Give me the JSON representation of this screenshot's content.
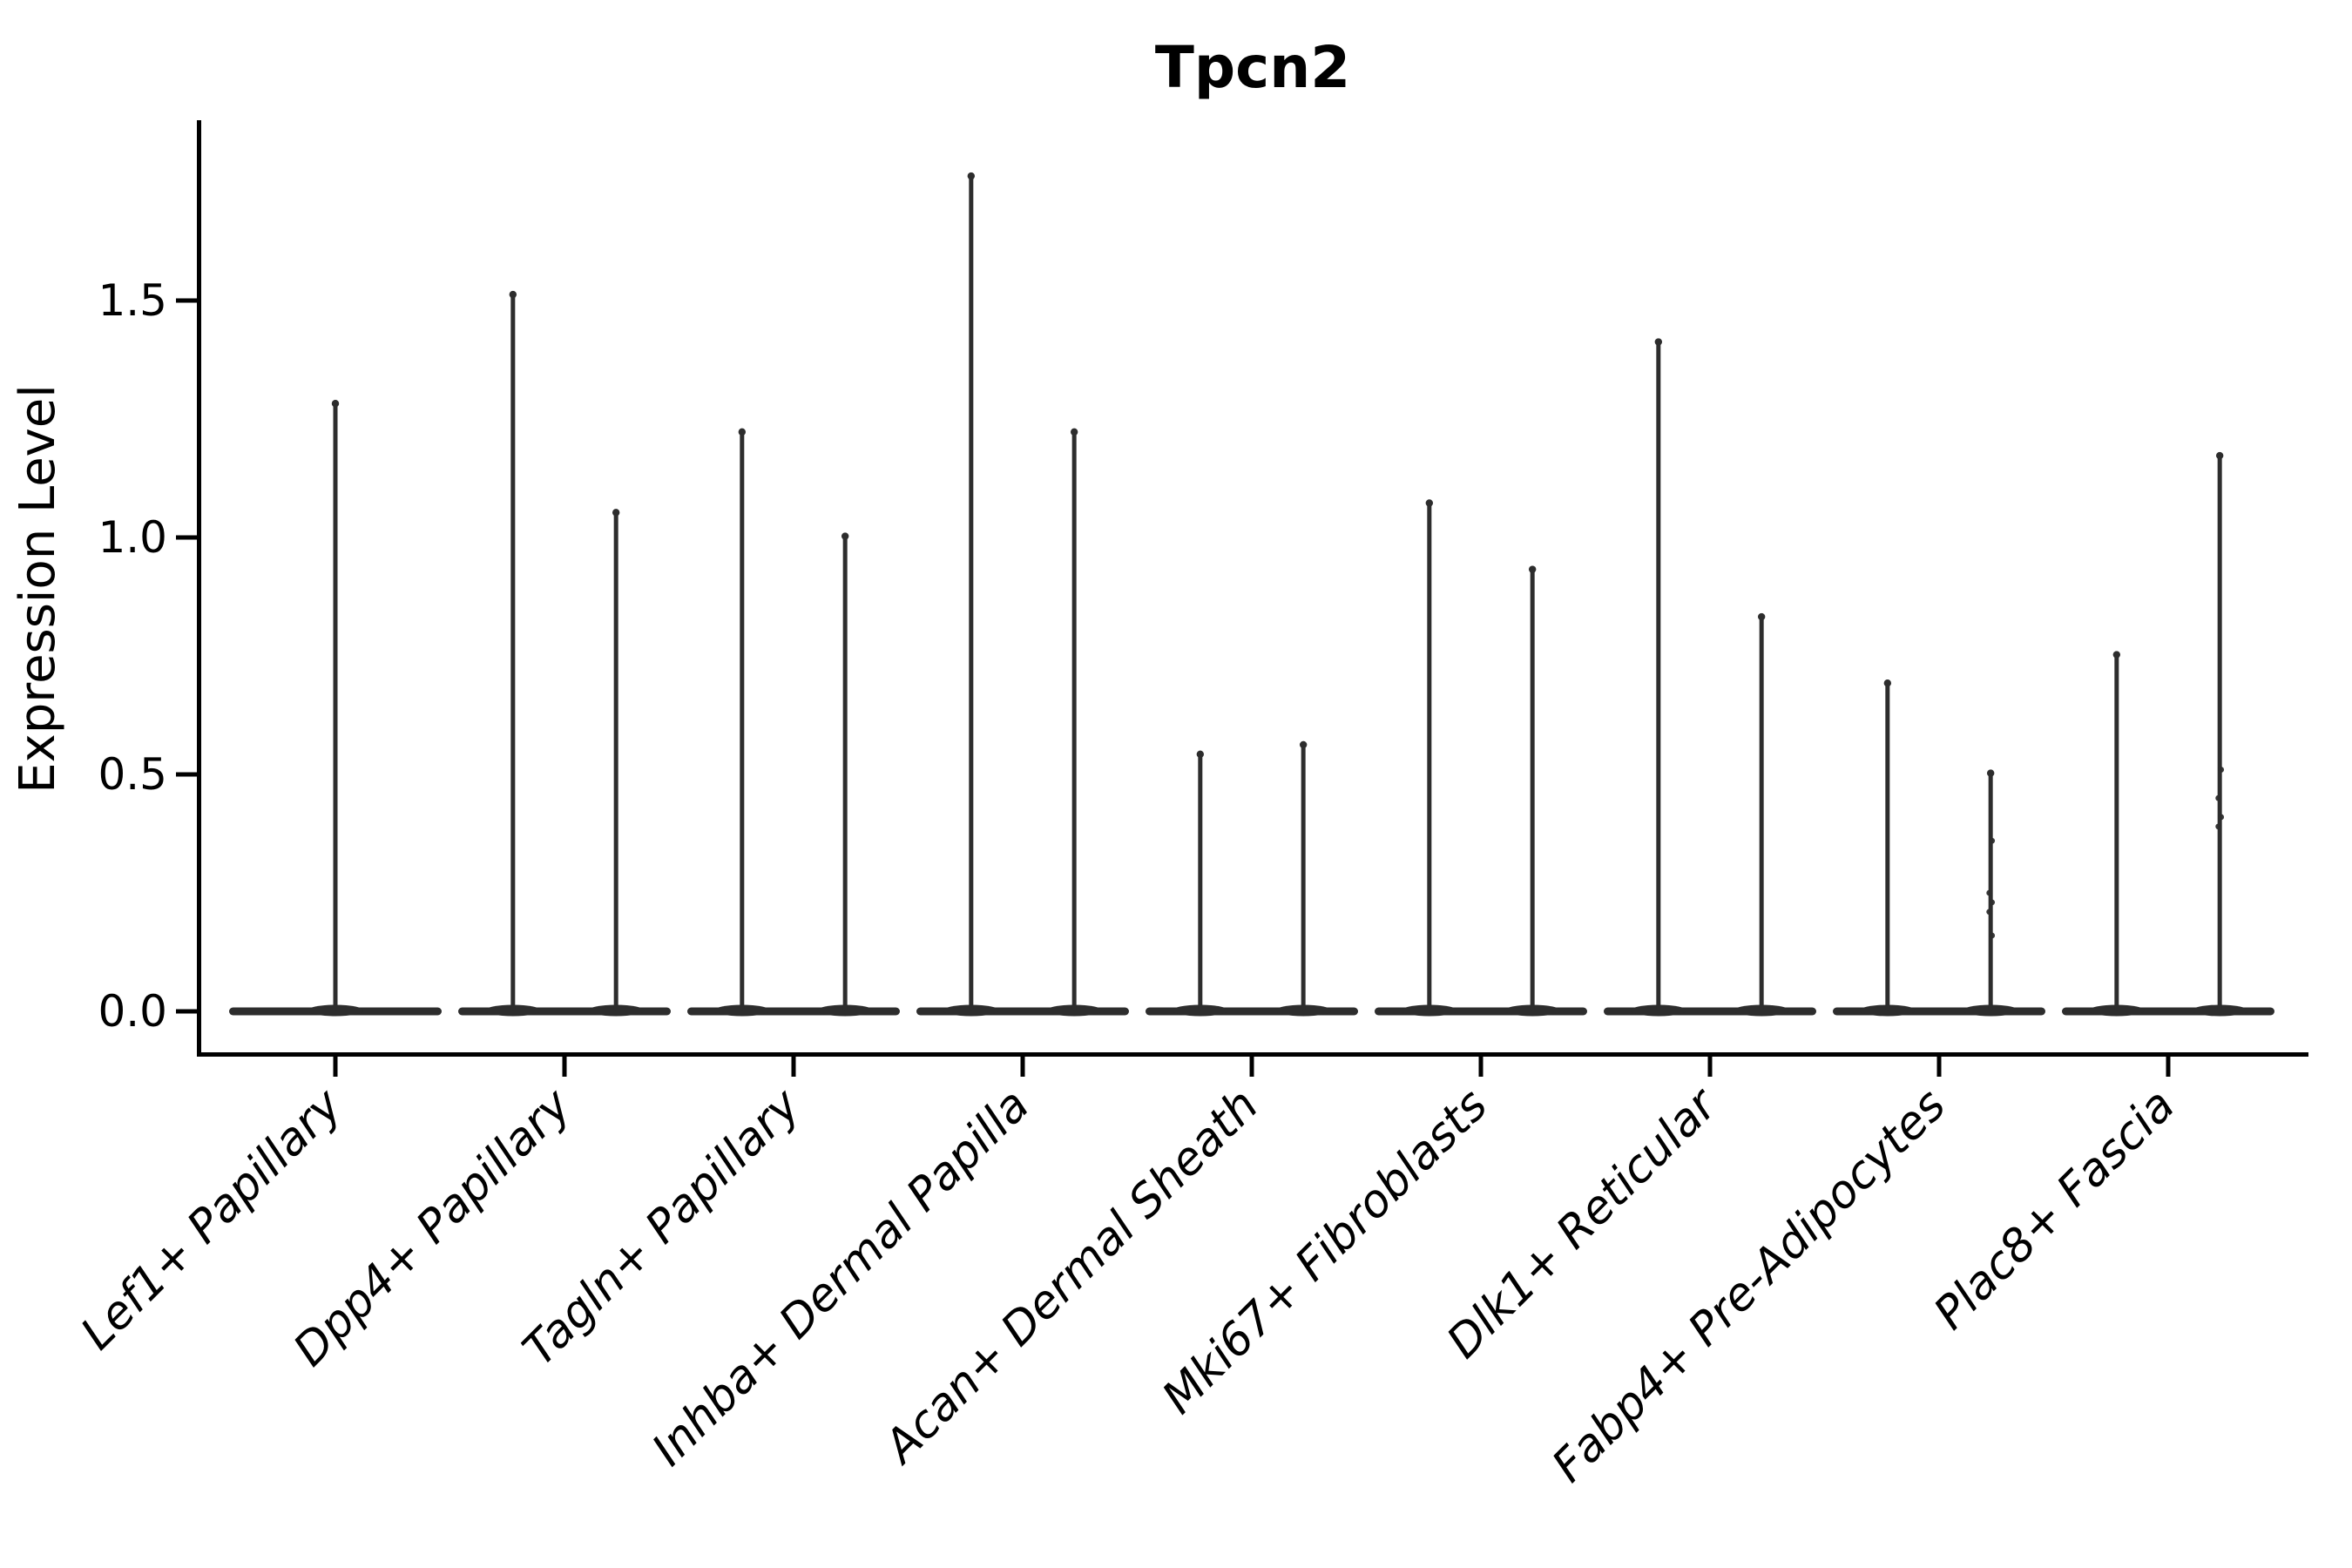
{
  "figure": {
    "title": "Tpcn2",
    "y_axis_label": "Expression Level"
  },
  "chart_data": {
    "type": "violin",
    "title": "Tpcn2",
    "xlabel": "",
    "ylabel": "Expression Level",
    "ylim": [
      -0.09,
      1.88
    ],
    "yticks": [
      0.0,
      0.5,
      1.0,
      1.5
    ],
    "ytick_labels": [
      "0.0",
      "0.5",
      "1.0",
      "1.5"
    ],
    "grid": false,
    "legend": null,
    "categories": [
      "Lef1+ Papillary",
      "Dpp4+ Papillary",
      "Tagln+ Papillary",
      "Inhba+ Dermal Papilla",
      "Acan+ Dermal Sheath",
      "Mki67+ Fibroblasts",
      "Dlk1+ Reticular",
      "Fabp4+ Pre-Adipocytes",
      "Plac8+ Fascia"
    ],
    "description": "Seurat-style VlnPlot: each cluster shows a wide flat density mass at expression 0 with thin tail spikes rising to the maximum expression; clusters 2-9 contain two adjacent violins, cluster 1 a single centered violin.",
    "violins": [
      {
        "category": "Lef1+ Papillary",
        "spikes": [
          {
            "offset": 0.0,
            "max": 1.29,
            "dots": []
          }
        ]
      },
      {
        "category": "Dpp4+ Papillary",
        "spikes": [
          {
            "offset": -0.225,
            "max": 1.52,
            "dots": []
          },
          {
            "offset": 0.225,
            "max": 1.06,
            "dots": []
          }
        ]
      },
      {
        "category": "Tagln+ Papillary",
        "spikes": [
          {
            "offset": -0.225,
            "max": 1.23,
            "dots": []
          },
          {
            "offset": 0.225,
            "max": 1.01,
            "dots": []
          }
        ]
      },
      {
        "category": "Inhba+ Dermal Papilla",
        "spikes": [
          {
            "offset": -0.225,
            "max": 1.77,
            "dots": []
          },
          {
            "offset": 0.225,
            "max": 1.23,
            "dots": []
          }
        ]
      },
      {
        "category": "Acan+ Dermal Sheath",
        "spikes": [
          {
            "offset": -0.225,
            "max": 0.55,
            "dots": []
          },
          {
            "offset": 0.225,
            "max": 0.57,
            "dots": []
          }
        ]
      },
      {
        "category": "Mki67+ Fibroblasts",
        "spikes": [
          {
            "offset": -0.225,
            "max": 1.08,
            "dots": []
          },
          {
            "offset": 0.225,
            "max": 0.94,
            "dots": []
          }
        ]
      },
      {
        "category": "Dlk1+ Reticular",
        "spikes": [
          {
            "offset": -0.225,
            "max": 1.42,
            "dots": []
          },
          {
            "offset": 0.225,
            "max": 0.84,
            "dots": []
          }
        ]
      },
      {
        "category": "Fabp4+ Pre-Adipocytes",
        "spikes": [
          {
            "offset": -0.225,
            "max": 0.7,
            "dots": []
          },
          {
            "offset": 0.225,
            "max": 0.51,
            "dots": [
              0.36,
              0.25,
              0.23,
              0.21,
              0.16
            ]
          }
        ]
      },
      {
        "category": "Plac8+ Fascia",
        "spikes": [
          {
            "offset": -0.225,
            "max": 0.76,
            "dots": []
          },
          {
            "offset": 0.225,
            "max": 1.18,
            "dots": [
              0.51,
              0.45,
              0.41,
              0.39
            ]
          }
        ]
      }
    ],
    "colors": {
      "violin": "#2d2d2d",
      "axis": "#000000",
      "text": "#000000",
      "background": "#ffffff"
    }
  }
}
